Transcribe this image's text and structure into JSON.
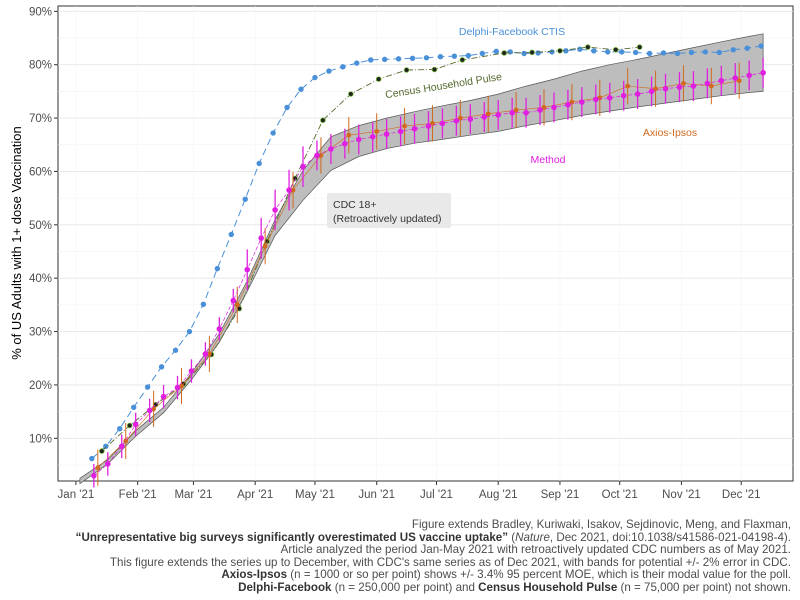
{
  "chart_data": {
    "type": "line",
    "ylabel": "% of US Adults with 1+ dose Vaccination",
    "xlabel": "",
    "x_ticks": [
      "Jan '21",
      "Feb '21",
      "Mar '21",
      "Apr '21",
      "May '21",
      "Jun '21",
      "Jul '21",
      "Aug '21",
      "Sep '21",
      "Oct '21",
      "Nov '21",
      "Dec '21"
    ],
    "y_ticks": [
      "10%",
      "20%",
      "30%",
      "40%",
      "50%",
      "60%",
      "70%",
      "80%",
      "90%"
    ],
    "ylim": [
      2,
      91
    ],
    "grid": true,
    "annotations": {
      "cdc_line1": "CDC 18+",
      "cdc_line2": "(Retroactively updated)"
    },
    "series": [
      {
        "name": "Delphi-Facebook CTIS",
        "color": "#4a90d9",
        "points": [
          [
            "2021-01-09",
            6.2
          ],
          [
            "2021-01-16",
            8.5
          ],
          [
            "2021-01-23",
            11.8
          ],
          [
            "2021-01-30",
            15.8
          ],
          [
            "2021-02-06",
            19.6
          ],
          [
            "2021-02-13",
            23.4
          ],
          [
            "2021-02-20",
            26.5
          ],
          [
            "2021-02-27",
            30
          ],
          [
            "2021-03-06",
            35.1
          ],
          [
            "2021-03-13",
            41.8
          ],
          [
            "2021-03-20",
            48.2
          ],
          [
            "2021-03-27",
            54.8
          ],
          [
            "2021-04-03",
            61.5
          ],
          [
            "2021-04-10",
            67.2
          ],
          [
            "2021-04-17",
            72
          ],
          [
            "2021-04-24",
            75.4
          ],
          [
            "2021-05-01",
            77.6
          ],
          [
            "2021-05-08",
            78.8
          ],
          [
            "2021-05-15",
            79.6
          ],
          [
            "2021-05-22",
            80.3
          ],
          [
            "2021-05-29",
            80.9
          ],
          [
            "2021-06-05",
            81
          ],
          [
            "2021-06-12",
            81.1
          ],
          [
            "2021-06-19",
            81.2
          ],
          [
            "2021-06-26",
            81.3
          ],
          [
            "2021-07-03",
            81.5
          ],
          [
            "2021-07-10",
            81.6
          ],
          [
            "2021-07-17",
            81.7
          ],
          [
            "2021-07-24",
            82.1
          ],
          [
            "2021-07-31",
            82.5
          ],
          [
            "2021-08-07",
            82.4
          ],
          [
            "2021-08-14",
            82.1
          ],
          [
            "2021-08-21",
            82.2
          ],
          [
            "2021-08-28",
            82.4
          ],
          [
            "2021-09-04",
            82.6
          ],
          [
            "2021-09-11",
            82.9
          ],
          [
            "2021-09-18",
            82.6
          ],
          [
            "2021-09-25",
            82.4
          ],
          [
            "2021-10-02",
            82.4
          ],
          [
            "2021-10-09",
            82.3
          ],
          [
            "2021-10-16",
            82.1
          ],
          [
            "2021-10-23",
            82.2
          ],
          [
            "2021-10-30",
            82.1
          ],
          [
            "2021-11-06",
            82.3
          ],
          [
            "2021-11-13",
            82.4
          ],
          [
            "2021-11-20",
            82.3
          ],
          [
            "2021-11-27",
            82.8
          ],
          [
            "2021-12-04",
            83.1
          ],
          [
            "2021-12-11",
            83.5
          ]
        ]
      },
      {
        "name": "Census Household Pulse",
        "color": "#556b2f",
        "points": [
          [
            "2021-01-14",
            7.6
          ],
          [
            "2021-01-28",
            12.4
          ],
          [
            "2021-02-10",
            16.3
          ],
          [
            "2021-02-24",
            20.2
          ],
          [
            "2021-03-10",
            25.7
          ],
          [
            "2021-03-24",
            34.3
          ],
          [
            "2021-04-07",
            46.9
          ],
          [
            "2021-04-21",
            58.7
          ],
          [
            "2021-05-05",
            69.6
          ],
          [
            "2021-05-19",
            74.5
          ],
          [
            "2021-06-02",
            77.3
          ],
          [
            "2021-06-16",
            79.0
          ],
          [
            "2021-06-30",
            79.1
          ],
          [
            "2021-07-14",
            80.9
          ],
          [
            "2021-08-04",
            82.2
          ],
          [
            "2021-08-18",
            82.3
          ],
          [
            "2021-09-01",
            82.6
          ],
          [
            "2021-09-15",
            83.3
          ],
          [
            "2021-09-29",
            82.8
          ],
          [
            "2021-10-11",
            83.3
          ]
        ]
      },
      {
        "name": "Axios-Ipsos",
        "color": "#d2691e",
        "points": [
          [
            "2021-01-12",
            4.5
          ],
          [
            "2021-01-26",
            9.5
          ],
          [
            "2021-02-09",
            15.5
          ],
          [
            "2021-02-23",
            19.8
          ],
          [
            "2021-03-09",
            25.8
          ],
          [
            "2021-03-23",
            35.0
          ],
          [
            "2021-04-06",
            46.0
          ],
          [
            "2021-04-20",
            56.5
          ],
          [
            "2021-05-04",
            63.0
          ],
          [
            "2021-05-18",
            66.8
          ],
          [
            "2021-06-01",
            67.5
          ],
          [
            "2021-06-15",
            68.5
          ],
          [
            "2021-06-29",
            69.0
          ],
          [
            "2021-07-13",
            70.0
          ],
          [
            "2021-07-27",
            70.8
          ],
          [
            "2021-08-10",
            71.5
          ],
          [
            "2021-08-24",
            72.0
          ],
          [
            "2021-09-07",
            73.0
          ],
          [
            "2021-09-21",
            73.8
          ],
          [
            "2021-10-05",
            76.0
          ],
          [
            "2021-10-19",
            75.5
          ],
          [
            "2021-11-02",
            76.5
          ],
          [
            "2021-11-16",
            76.0
          ],
          [
            "2021-11-30",
            77.0
          ]
        ]
      },
      {
        "name": "Method",
        "color": "#e020e0",
        "points": [
          [
            "2021-01-10",
            3
          ],
          [
            "2021-01-17",
            5.2
          ],
          [
            "2021-01-24",
            8.5
          ],
          [
            "2021-01-31",
            12.6
          ],
          [
            "2021-02-07",
            15.2
          ],
          [
            "2021-02-14",
            17.8
          ],
          [
            "2021-02-21",
            19.5
          ],
          [
            "2021-02-28",
            22.6
          ],
          [
            "2021-03-07",
            25.8
          ],
          [
            "2021-03-14",
            30.5
          ],
          [
            "2021-03-21",
            35.8
          ],
          [
            "2021-03-28",
            41.6
          ],
          [
            "2021-04-04",
            47.5
          ],
          [
            "2021-04-11",
            52.8
          ],
          [
            "2021-04-18",
            56.5
          ],
          [
            "2021-04-25",
            60.9
          ],
          [
            "2021-05-02",
            63.0
          ],
          [
            "2021-05-09",
            64.2
          ],
          [
            "2021-05-16",
            65.2
          ],
          [
            "2021-05-23",
            66.0
          ],
          [
            "2021-05-30",
            66.5
          ],
          [
            "2021-06-06",
            67.0
          ],
          [
            "2021-06-13",
            67.5
          ],
          [
            "2021-06-20",
            68.0
          ],
          [
            "2021-06-27",
            68.5
          ],
          [
            "2021-07-04",
            69.0
          ],
          [
            "2021-07-11",
            69.5
          ],
          [
            "2021-07-18",
            69.8
          ],
          [
            "2021-07-25",
            70.2
          ],
          [
            "2021-08-01",
            70.6
          ],
          [
            "2021-08-08",
            71.0
          ],
          [
            "2021-08-15",
            71.0
          ],
          [
            "2021-08-22",
            71.5
          ],
          [
            "2021-08-29",
            72.0
          ],
          [
            "2021-09-05",
            72.5
          ],
          [
            "2021-09-12",
            73.0
          ],
          [
            "2021-09-19",
            73.5
          ],
          [
            "2021-09-26",
            73.8
          ],
          [
            "2021-10-03",
            74.2
          ],
          [
            "2021-10-10",
            74.5
          ],
          [
            "2021-10-17",
            75.0
          ],
          [
            "2021-10-24",
            75.5
          ],
          [
            "2021-10-31",
            75.8
          ],
          [
            "2021-11-07",
            76.0
          ],
          [
            "2021-11-14",
            76.5
          ],
          [
            "2021-11-21",
            77.0
          ],
          [
            "2021-11-28",
            77.5
          ],
          [
            "2021-12-05",
            78.0
          ],
          [
            "2021-12-12",
            78.5
          ]
        ]
      },
      {
        "name": "CDC 18+",
        "color": "#999999",
        "band_points": [
          [
            "2021-01-03",
            1.5,
            2.5
          ],
          [
            "2021-01-17",
            5.2,
            6.0
          ],
          [
            "2021-01-31",
            10.4,
            11.4
          ],
          [
            "2021-02-14",
            14.8,
            15.8
          ],
          [
            "2021-02-28",
            21.0,
            22.2
          ],
          [
            "2021-03-14",
            28.0,
            29.6
          ],
          [
            "2021-03-28",
            37.5,
            39.5
          ],
          [
            "2021-04-11",
            48.0,
            51.0
          ],
          [
            "2021-04-25",
            54.6,
            60.2
          ],
          [
            "2021-05-09",
            60.2,
            66.5
          ],
          [
            "2021-05-23",
            62.8,
            68.6
          ],
          [
            "2021-06-06",
            64.3,
            70.0
          ],
          [
            "2021-06-20",
            65.3,
            71.2
          ],
          [
            "2021-07-04",
            66.0,
            72.3
          ],
          [
            "2021-07-18",
            66.8,
            73.3
          ],
          [
            "2021-08-01",
            67.5,
            74.5
          ],
          [
            "2021-08-15",
            68.6,
            76.0
          ],
          [
            "2021-08-29",
            69.5,
            77.3
          ],
          [
            "2021-09-12",
            70.5,
            78.8
          ],
          [
            "2021-09-26",
            71.3,
            80.0
          ],
          [
            "2021-10-10",
            72.1,
            81.0
          ],
          [
            "2021-10-24",
            72.8,
            82.1
          ],
          [
            "2021-11-07",
            73.5,
            83.2
          ],
          [
            "2021-11-21",
            74.2,
            84.3
          ],
          [
            "2021-12-05",
            74.8,
            85.3
          ],
          [
            "2021-12-12",
            75.0,
            85.8
          ]
        ]
      }
    ]
  },
  "caption": {
    "line1": "Figure extends Bradley, Kuriwaki, Isakov, Sejdinovic, Meng, and Flaxman,",
    "line2_title": "“Unrepresentative big surveys significantly overestimated US vaccine uptake”",
    "line2_journal": "Nature",
    "line2_rest": ", Dec 2021, doi:10.1038/s41586-021-04198-4).",
    "line3": "Article analyzed the period Jan-May 2021 with retroactively updated CDC numbers as of May 2021.",
    "line4": "This figure extends the series up to December, with CDC's same series as of Dec 2021, with bands for potential +/- 2% error in CDC.",
    "line5_bold": "Axios-Ipsos",
    "line5_rest": " (n = 1000 or so per point) shows +/- 3.4% 95 percent MOE, which is their modal value for the poll.",
    "line6_bold1": "Delphi-Facebook",
    "line6_mid": " (n = 250,000 per point) and ",
    "line6_bold2": "Census Household Pulse",
    "line6_rest": " (n = 75,000 per point) not shown."
  }
}
